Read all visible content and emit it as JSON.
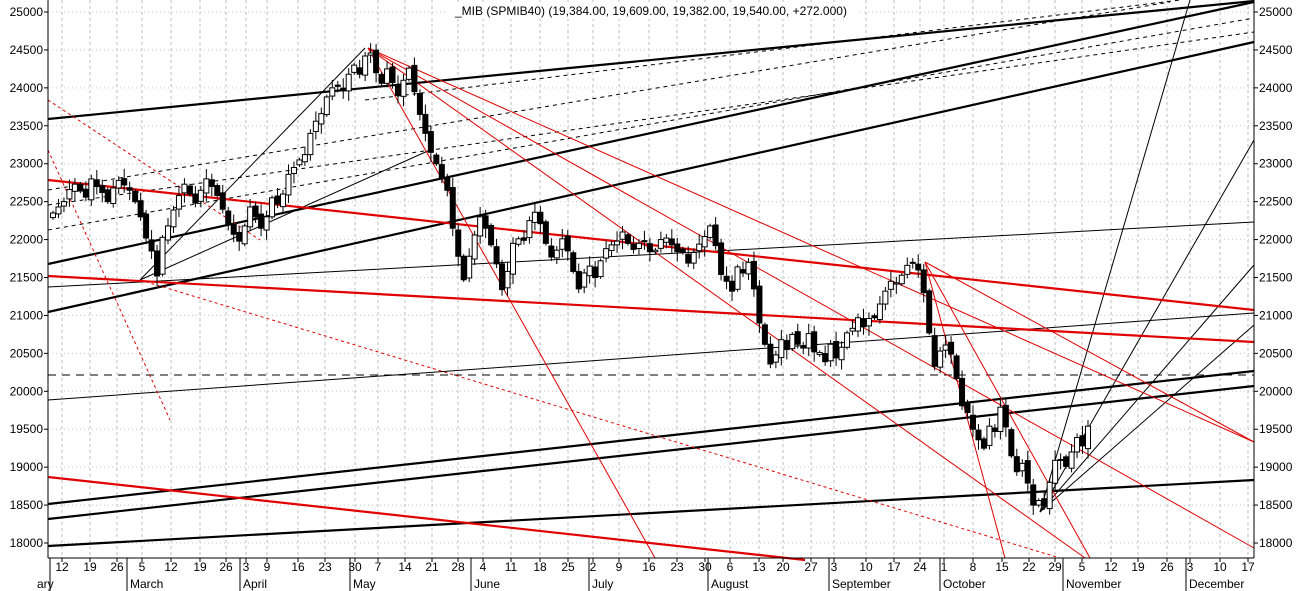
{
  "chart_data": {
    "type": "candlestick",
    "title": "_MIB (SPMIB40) (19,384.00, 19,609.00, 19,382.00, 19,540.00, +272.000)",
    "ylim": [
      17800,
      25050
    ],
    "yticks": [
      18000,
      18500,
      19000,
      19500,
      20000,
      20500,
      21000,
      21500,
      22000,
      22500,
      23000,
      23500,
      24000,
      24500,
      25000
    ],
    "ytick_labels": [
      "18000",
      "18500",
      "19000",
      "19500",
      "20000",
      "20500",
      "21000",
      "21500",
      "22000",
      "22500",
      "23000",
      "23500",
      "24000",
      "24500",
      "25000"
    ],
    "day_labels": [
      "12",
      "19",
      "26",
      "5",
      "12",
      "19",
      "26",
      "3",
      "9",
      "16",
      "23",
      "30",
      "7",
      "14",
      "21",
      "28",
      "4",
      "11",
      "18",
      "25",
      "2",
      "9",
      "16",
      "23",
      "30",
      "6",
      "13",
      "20",
      "27",
      "3",
      "10",
      "17",
      "24",
      "1",
      "8",
      "15",
      "22",
      "29",
      "5",
      "12",
      "19",
      "26",
      "3",
      "10",
      "17"
    ],
    "month_labels": [
      "ary",
      "March",
      "April",
      "May",
      "June",
      "July",
      "August",
      "September",
      "October",
      "November",
      "December"
    ],
    "closes": [
      22350,
      22430,
      22500,
      22660,
      22730,
      22640,
      22560,
      22800,
      22700,
      22620,
      22500,
      22680,
      22780,
      22720,
      22650,
      22500,
      22300,
      22020,
      21850,
      21520,
      22030,
      22180,
      22390,
      22580,
      22730,
      22600,
      22480,
      22650,
      22800,
      22700,
      22580,
      22400,
      22200,
      22070,
      21980,
      22180,
      22430,
      22300,
      22150,
      22300,
      22550,
      22470,
      22600,
      22860,
      22950,
      23050,
      23120,
      23400,
      23560,
      23660,
      23880,
      24000,
      24020,
      23960,
      24180,
      24300,
      24180,
      24420,
      24460,
      24200,
      24060,
      24250,
      24070,
      23900,
      24100,
      24260,
      23950,
      23650,
      23400,
      23150,
      23000,
      22800,
      22650,
      22150,
      21780,
      21470,
      21780,
      22060,
      22300,
      22150,
      21930,
      21680,
      21340,
      21580,
      21950,
      22010,
      21990,
      22250,
      22360,
      22210,
      21950,
      21770,
      21860,
      22010,
      21850,
      21580,
      21350,
      21560,
      21650,
      21500,
      21720,
      21880,
      21930,
      21980,
      22100,
      21950,
      21870,
      21950,
      21970,
      21840,
      21860,
      22000,
      22020,
      21930,
      21840,
      21830,
      21690,
      21830,
      21940,
      22040,
      22180,
      21920,
      21540,
      21450,
      21320,
      21640,
      21560,
      21700,
      21350,
      20900,
      20620,
      20360,
      20480,
      20680,
      20550,
      20750,
      20620,
      20570,
      20760,
      20520,
      20510,
      20390,
      20620,
      20440,
      20580,
      20770,
      20830,
      20970,
      20850,
      20960,
      20970,
      21150,
      21320,
      21450,
      21430,
      21530,
      21660,
      21700,
      21600,
      21300,
      20770,
      20330,
      20530,
      20610,
      20490,
      20170,
      19810,
      19720,
      19500,
      19360,
      19250,
      19540,
      19470,
      19790,
      19530,
      19150,
      18940,
      19050,
      18790,
      18500,
      18560,
      18490,
      18800,
      19090,
      19100,
      19010,
      19200,
      19390,
      19280,
      19540
    ]
  }
}
